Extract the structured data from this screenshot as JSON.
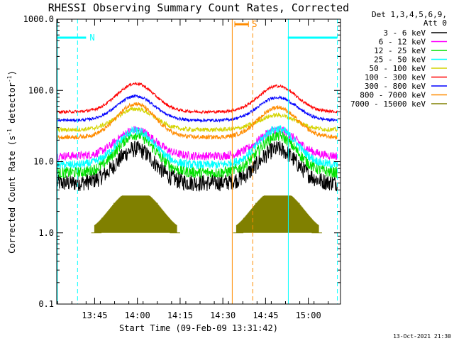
{
  "chart_data": {
    "type": "line",
    "title": "RHESSI Observing Summary Count Rates, Corrected",
    "xlabel": "Start Time (09-Feb-09 13:31:42)",
    "ylabel": "Corrected Count Rate (s",
    "ylabel_sup1": "-1",
    "ylabel_mid": " detector",
    "ylabel_sup2": "-1",
    "ylabel_end": ")",
    "y_scale": "log",
    "ylim": [
      0.1,
      1000
    ],
    "y_ticks": [
      0.1,
      1,
      10,
      100,
      1000
    ],
    "y_tick_labels": [
      "0.1",
      "1.0",
      "10.0",
      "100.0",
      "1000.0"
    ],
    "xlim": [
      13.5283,
      15.1883
    ],
    "x_ticks": [
      13.75,
      14.0,
      14.25,
      14.5,
      14.75,
      15.0
    ],
    "x_tick_labels": [
      "13:45",
      "14:00",
      "14:15",
      "14:30",
      "14:45",
      "15:00"
    ],
    "legend_header": [
      "Det 1,3,4,5,6,9,",
      "Att 0"
    ],
    "legend_position": "outside-right",
    "series": [
      {
        "name": "3 - 6 keV",
        "color": "#000000",
        "base": 5.0,
        "peak1": 15,
        "peak2": 15,
        "noise": 0.12
      },
      {
        "name": "6 - 12 keV",
        "color": "#ff00ff",
        "base": 12,
        "peak1": 28,
        "peak2": 28,
        "noise": 0.06
      },
      {
        "name": "12 - 25 keV",
        "color": "#00e000",
        "base": 7,
        "peak1": 24,
        "peak2": 23,
        "noise": 0.08
      },
      {
        "name": "25 - 50 keV",
        "color": "#00ffff",
        "base": 9,
        "peak1": 27,
        "peak2": 29,
        "noise": 0.06
      },
      {
        "name": "50 - 100 keV",
        "color": "#d4d400",
        "base": 28,
        "peak1": 55,
        "peak2": 45,
        "noise": 0.03
      },
      {
        "name": "100 - 300 keV",
        "color": "#ff0000",
        "base": 50,
        "peak1": 125,
        "peak2": 115,
        "noise": 0.02
      },
      {
        "name": "300 - 800 keV",
        "color": "#0000ff",
        "base": 38,
        "peak1": 83,
        "peak2": 80,
        "noise": 0.02
      },
      {
        "name": "800 - 7000 keV",
        "color": "#ff8c00",
        "base": 22,
        "peak1": 65,
        "peak2": 58,
        "noise": 0.03
      },
      {
        "name": "7000 - 15000 keV",
        "color": "#808000",
        "base": 1.0,
        "peak1": 3.2,
        "peak2": 3.2,
        "noise": 0.0
      }
    ],
    "bands": [
      {
        "label": "N",
        "color": "#00ffff",
        "x_start": 13.53,
        "x_end": 13.7,
        "y_value": 550
      },
      {
        "label": "",
        "color": "#00ffff",
        "x_start": 14.88,
        "x_end": 15.17,
        "y_value": 550
      },
      {
        "label": "S",
        "color": "#ff8c00",
        "x_start": 14.57,
        "x_end": 14.65,
        "y_value": 850
      }
    ],
    "vlines": [
      {
        "x": 13.532,
        "color": "#00ffff",
        "style": "solid"
      },
      {
        "x": 13.65,
        "color": "#00ffff",
        "style": "dashed"
      },
      {
        "x": 14.883,
        "color": "#00ffff",
        "style": "solid"
      },
      {
        "x": 15.17,
        "color": "#00ffff",
        "style": "dashed"
      },
      {
        "x": 14.555,
        "color": "#ff8c00",
        "style": "solid"
      },
      {
        "x": 14.675,
        "color": "#ff8c00",
        "style": "dashed"
      }
    ],
    "peak_times": [
      13.99,
      14.82
    ],
    "timestamp": "13-Oct-2021 21:30"
  }
}
